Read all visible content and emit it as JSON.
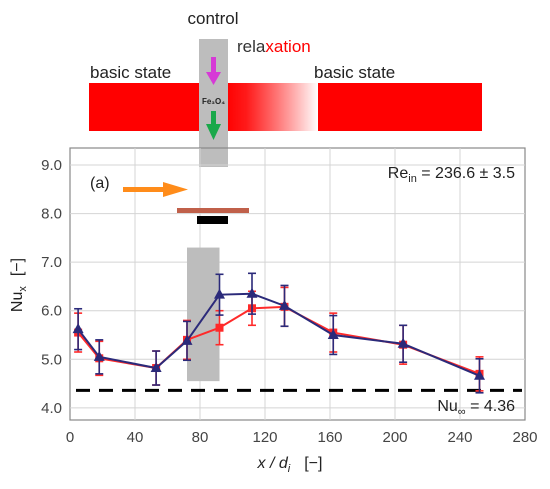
{
  "colors": {
    "band": "#ff0000",
    "control_column": "#bdbdbd",
    "series_controlled": "#ff2a2a",
    "series_reference": "#2b2a7a",
    "arrow_in": "#ff8c1a",
    "arrow_magenta": "#d63ad6",
    "arrow_green": "#1aa84a",
    "heater_bar": "#c0604a",
    "ref_line": "#000000"
  },
  "diagram": {
    "control_label": "control",
    "relaxation_label": "relaxation",
    "basic_state_left": "basic state",
    "basic_state_right": "basic state",
    "particle_label": "Fe₃O₄"
  },
  "chart_data": {
    "type": "line",
    "panel_label": "(a)",
    "xlabel": "x / d",
    "xlabel_sub": "i",
    "xlabel_unit": "[−]",
    "ylabel": "Nu",
    "ylabel_sub": "x",
    "ylabel_unit": "[−]",
    "xlim": [
      0,
      280
    ],
    "ylim": [
      3.75,
      9.35
    ],
    "xticks": [
      "0",
      "40",
      "80",
      "120",
      "160",
      "200",
      "240",
      "280"
    ],
    "yticks": [
      "4.0",
      "5.0",
      "6.0",
      "7.0",
      "8.0",
      "9.0"
    ],
    "control_region_x": [
      72,
      92
    ],
    "re_annotation": {
      "prefix": "Re",
      "sub": "in",
      "text": " = 236.6 ± 3.5"
    },
    "nu_inf_annotation": {
      "prefix": "Nu",
      "sub": "∞",
      "text": " = 4.36"
    },
    "nu_inf": 4.36,
    "series": [
      {
        "marker": "square",
        "x": [
          5,
          18,
          53,
          72,
          92,
          112,
          132,
          162,
          205,
          252
        ],
        "y": [
          5.55,
          5.02,
          4.82,
          5.4,
          5.65,
          6.05,
          6.08,
          5.55,
          5.3,
          4.7
        ],
        "err": [
          0.4,
          0.35,
          0.35,
          0.4,
          0.35,
          0.35,
          0.4,
          0.4,
          0.4,
          0.35
        ]
      },
      {
        "marker": "triangle",
        "x": [
          5,
          18,
          53,
          72,
          92,
          112,
          132,
          162,
          205,
          252
        ],
        "y": [
          5.62,
          5.05,
          4.82,
          5.38,
          6.33,
          6.35,
          6.1,
          5.5,
          5.32,
          4.66
        ],
        "err": [
          0.42,
          0.35,
          0.35,
          0.4,
          0.42,
          0.42,
          0.42,
          0.4,
          0.38,
          0.35
        ]
      }
    ]
  }
}
